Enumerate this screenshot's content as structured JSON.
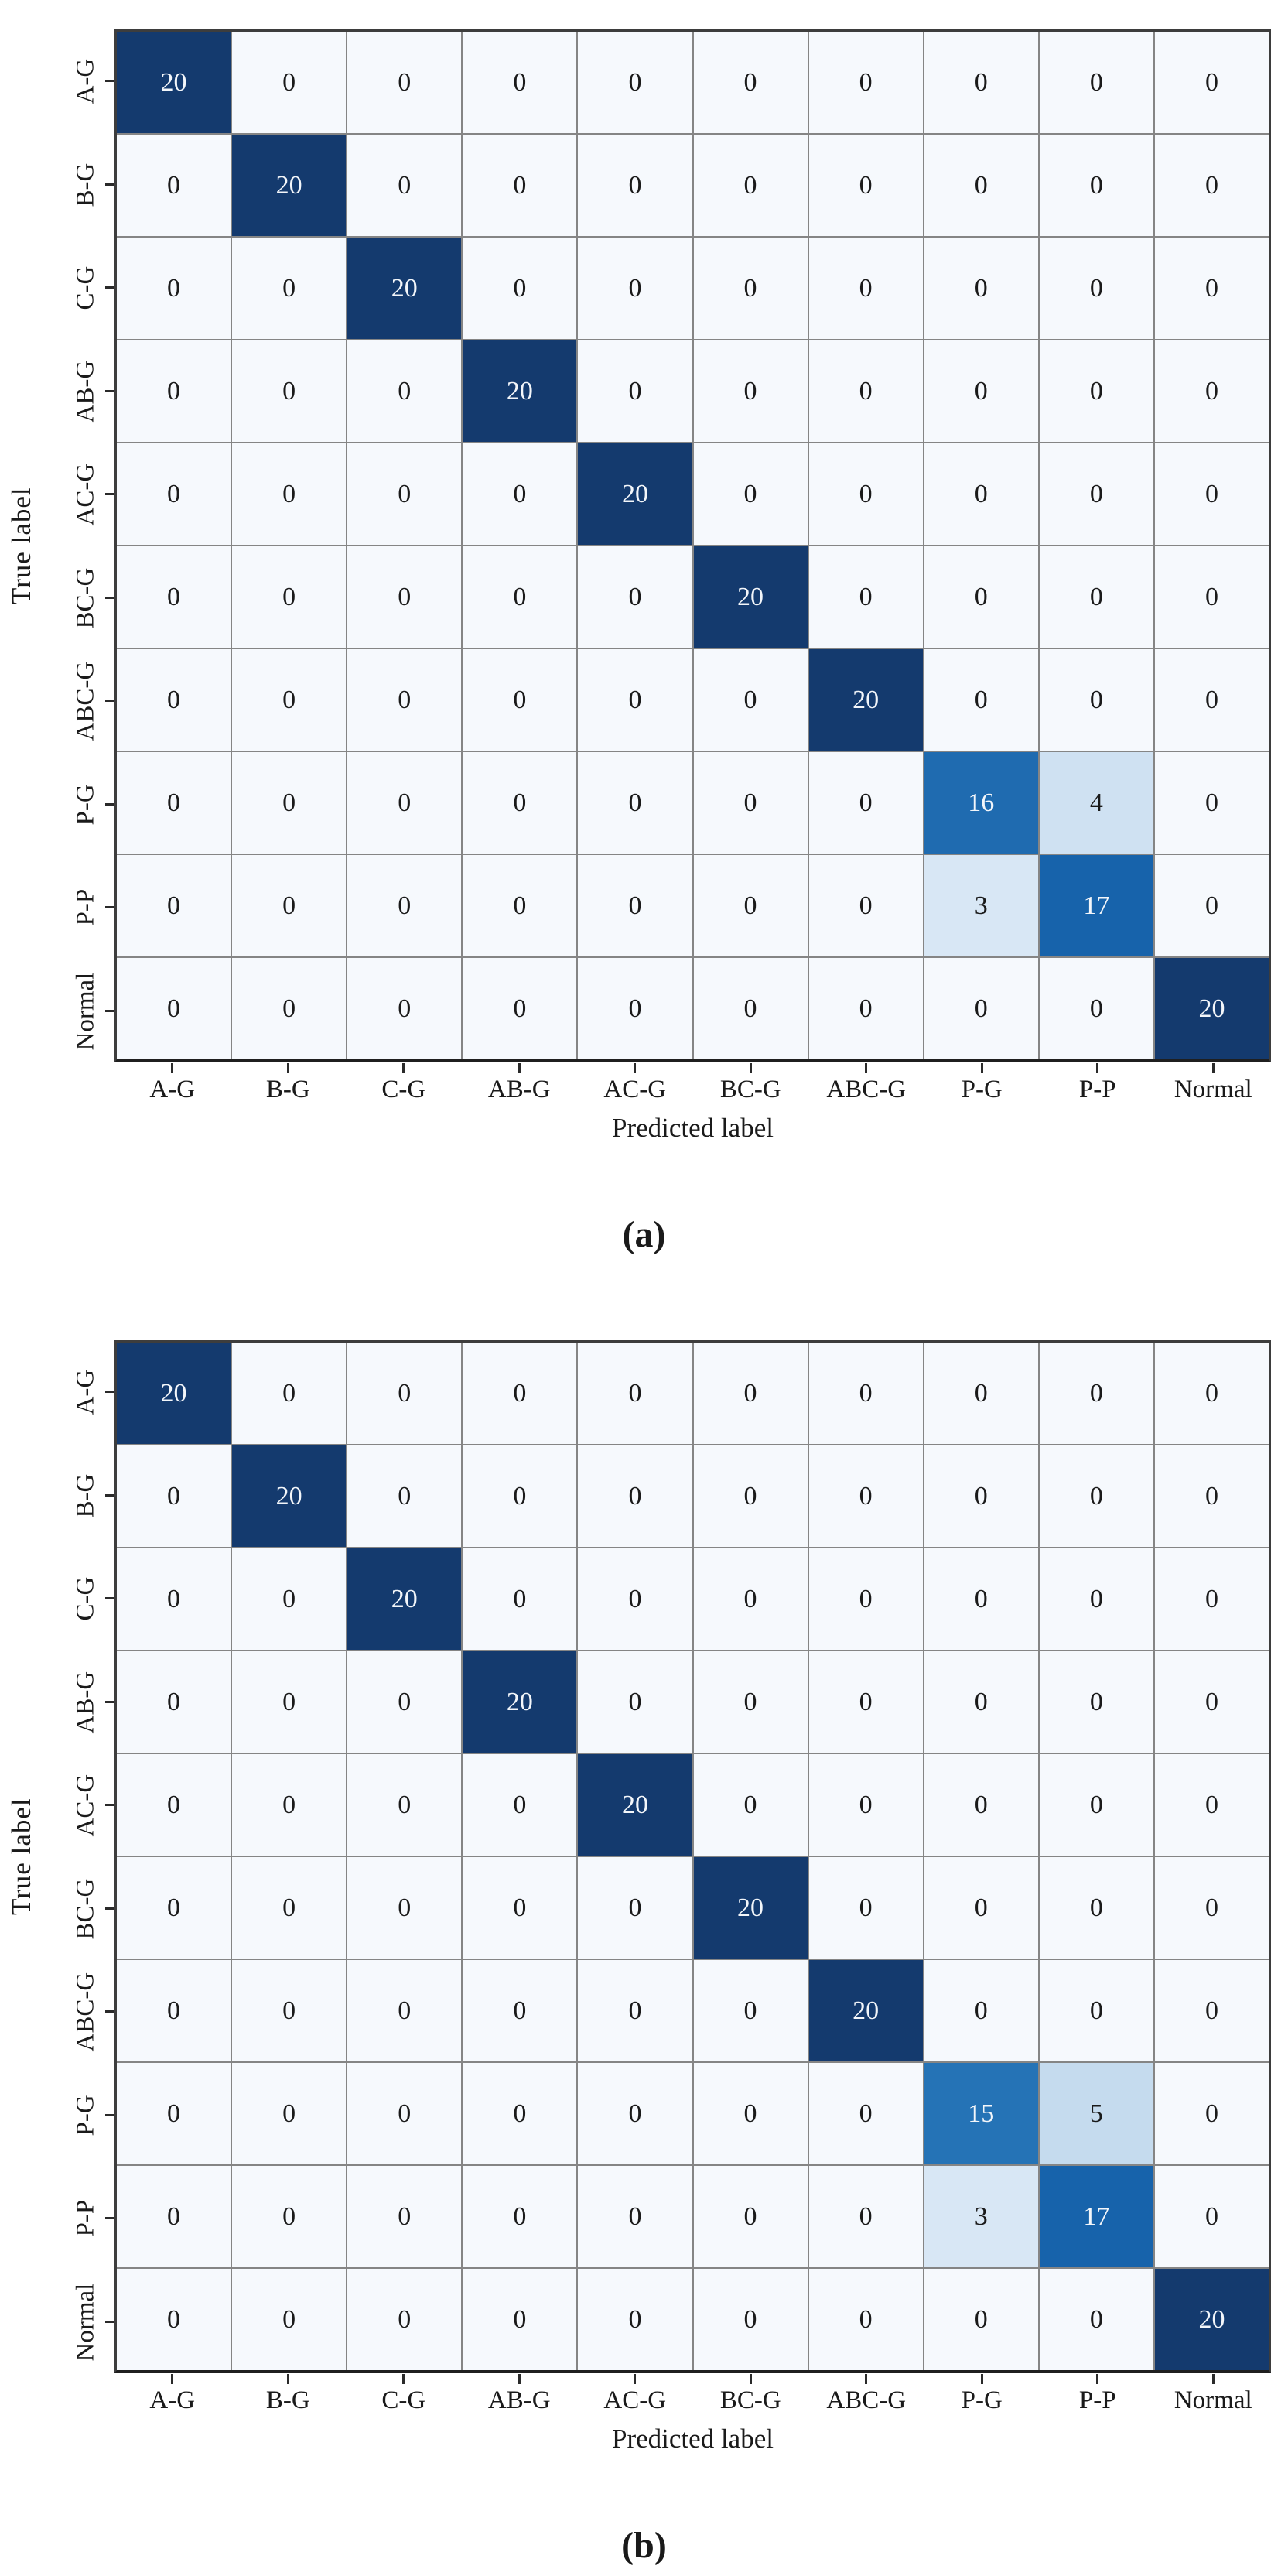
{
  "style": {
    "color_scale": {
      "0": "#f6f9fd",
      "3": "#d8e7f5",
      "4": "#cfe1f2",
      "5": "#c5dbee",
      "15": "#2573b6",
      "16": "#1f6bb0",
      "17": "#1763ab",
      "20": "#143a6e"
    },
    "light_text_min": 15,
    "light_text": "#f3f6fa",
    "dark_text": "#1a1a1a",
    "grid_line": "#858585",
    "border": "#3d3d3d",
    "tick": "#2a2a2a"
  },
  "chart_data": [
    {
      "type": "heatmap",
      "panel": "a",
      "caption": "(a)",
      "xlabel": "Predicted label",
      "ylabel": "True label",
      "x_labels": [
        "A-G",
        "B-G",
        "C-G",
        "AB-G",
        "AC-G",
        "BC-G",
        "ABC-G",
        "P-G",
        "P-P",
        "Normal"
      ],
      "y_labels": [
        "A-G",
        "B-G",
        "C-G",
        "AB-G",
        "AC-G",
        "BC-G",
        "ABC-G",
        "P-G",
        "P-P",
        "Normal"
      ],
      "value_range": [
        0,
        20
      ],
      "grid": true,
      "matrix": [
        [
          20,
          0,
          0,
          0,
          0,
          0,
          0,
          0,
          0,
          0
        ],
        [
          0,
          20,
          0,
          0,
          0,
          0,
          0,
          0,
          0,
          0
        ],
        [
          0,
          0,
          20,
          0,
          0,
          0,
          0,
          0,
          0,
          0
        ],
        [
          0,
          0,
          0,
          20,
          0,
          0,
          0,
          0,
          0,
          0
        ],
        [
          0,
          0,
          0,
          0,
          20,
          0,
          0,
          0,
          0,
          0
        ],
        [
          0,
          0,
          0,
          0,
          0,
          20,
          0,
          0,
          0,
          0
        ],
        [
          0,
          0,
          0,
          0,
          0,
          0,
          20,
          0,
          0,
          0
        ],
        [
          0,
          0,
          0,
          0,
          0,
          0,
          0,
          16,
          4,
          0
        ],
        [
          0,
          0,
          0,
          0,
          0,
          0,
          0,
          3,
          17,
          0
        ],
        [
          0,
          0,
          0,
          0,
          0,
          0,
          0,
          0,
          0,
          20
        ]
      ]
    },
    {
      "type": "heatmap",
      "panel": "b",
      "caption": "(b)",
      "xlabel": "Predicted label",
      "ylabel": "True label",
      "x_labels": [
        "A-G",
        "B-G",
        "C-G",
        "AB-G",
        "AC-G",
        "BC-G",
        "ABC-G",
        "P-G",
        "P-P",
        "Normal"
      ],
      "y_labels": [
        "A-G",
        "B-G",
        "C-G",
        "AB-G",
        "AC-G",
        "BC-G",
        "ABC-G",
        "P-G",
        "P-P",
        "Normal"
      ],
      "value_range": [
        0,
        20
      ],
      "grid": true,
      "matrix": [
        [
          20,
          0,
          0,
          0,
          0,
          0,
          0,
          0,
          0,
          0
        ],
        [
          0,
          20,
          0,
          0,
          0,
          0,
          0,
          0,
          0,
          0
        ],
        [
          0,
          0,
          20,
          0,
          0,
          0,
          0,
          0,
          0,
          0
        ],
        [
          0,
          0,
          0,
          20,
          0,
          0,
          0,
          0,
          0,
          0
        ],
        [
          0,
          0,
          0,
          0,
          20,
          0,
          0,
          0,
          0,
          0
        ],
        [
          0,
          0,
          0,
          0,
          0,
          20,
          0,
          0,
          0,
          0
        ],
        [
          0,
          0,
          0,
          0,
          0,
          0,
          20,
          0,
          0,
          0
        ],
        [
          0,
          0,
          0,
          0,
          0,
          0,
          0,
          15,
          5,
          0
        ],
        [
          0,
          0,
          0,
          0,
          0,
          0,
          0,
          3,
          17,
          0
        ],
        [
          0,
          0,
          0,
          0,
          0,
          0,
          0,
          0,
          0,
          20
        ]
      ]
    }
  ]
}
